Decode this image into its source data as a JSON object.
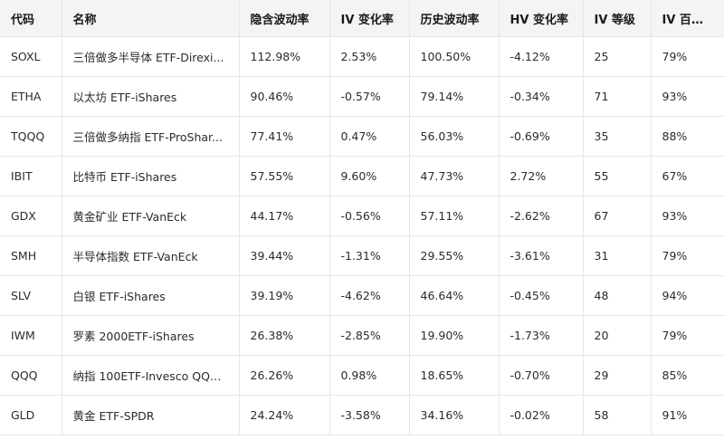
{
  "table": {
    "headers": [
      "代码",
      "名称",
      "隐含波动率",
      "IV 变化率",
      "历史波动率",
      "HV 变化率",
      "IV 等级",
      "IV 百分位"
    ],
    "rows": [
      [
        "SOXL",
        "三倍做多半导体 ETF-Direxi...",
        "112.98%",
        "2.53%",
        "100.50%",
        "-4.12%",
        "25",
        "79%"
      ],
      [
        "ETHA",
        "以太坊 ETF-iShares",
        "90.46%",
        "-0.57%",
        "79.14%",
        "-0.34%",
        "71",
        "93%"
      ],
      [
        "TQQQ",
        "三倍做多纳指 ETF-ProShar...",
        "77.41%",
        "0.47%",
        "56.03%",
        "-0.69%",
        "35",
        "88%"
      ],
      [
        "IBIT",
        "比特币 ETF-iShares",
        "57.55%",
        "9.60%",
        "47.73%",
        "2.72%",
        "55",
        "67%"
      ],
      [
        "GDX",
        "黄金矿业 ETF-VanEck",
        "44.17%",
        "-0.56%",
        "57.11%",
        "-2.62%",
        "67",
        "93%"
      ],
      [
        "SMH",
        "半导体指数 ETF-VanEck",
        "39.44%",
        "-1.31%",
        "29.55%",
        "-3.61%",
        "31",
        "79%"
      ],
      [
        "SLV",
        "白银 ETF-iShares",
        "39.19%",
        "-4.62%",
        "46.64%",
        "-0.45%",
        "48",
        "94%"
      ],
      [
        "IWM",
        "罗素 2000ETF-iShares",
        "26.38%",
        "-2.85%",
        "19.90%",
        "-1.73%",
        "20",
        "79%"
      ],
      [
        "QQQ",
        "纳指 100ETF-Invesco QQQ...",
        "26.26%",
        "0.98%",
        "18.65%",
        "-0.70%",
        "29",
        "85%"
      ],
      [
        "GLD",
        "黄金 ETF-SPDR",
        "24.24%",
        "-3.58%",
        "34.16%",
        "-0.02%",
        "58",
        "91%"
      ]
    ]
  }
}
